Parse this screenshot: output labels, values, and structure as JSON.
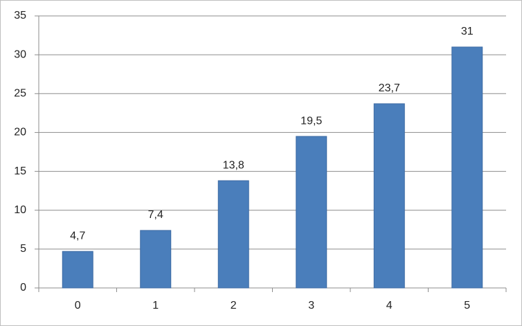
{
  "chart_data": {
    "type": "bar",
    "categories": [
      "0",
      "1",
      "2",
      "3",
      "4",
      "5"
    ],
    "values": [
      4.7,
      7.4,
      13.8,
      19.5,
      23.7,
      31
    ],
    "value_labels": [
      "4,7",
      "7,4",
      "13,8",
      "19,5",
      "23,7",
      "31"
    ],
    "color": "#4a7ebb",
    "ylim": [
      0,
      35
    ],
    "yticks": [
      0,
      5,
      10,
      15,
      20,
      25,
      30,
      35
    ],
    "grid": true
  }
}
